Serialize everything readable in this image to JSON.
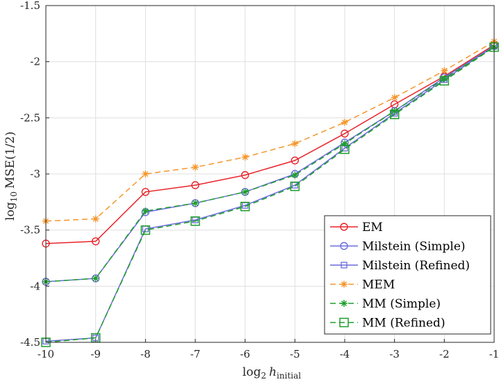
{
  "chart_data": {
    "type": "line",
    "title": "",
    "xlabel": "log2 h_initial",
    "xlabel_main": "log",
    "xlabel_sub": "2",
    "xlabel_var": "h",
    "xlabel_var_sub": "initial",
    "ylabel": "log10 MSE(1/2)",
    "ylabel_main": "log",
    "ylabel_sub": "10",
    "ylabel_rest": "MSE(1/2)",
    "xlim": [
      -10,
      -1
    ],
    "ylim": [
      -4.5,
      -1.5
    ],
    "grid": true,
    "legend_position": "bottom-right",
    "x_ticks": [
      "-10",
      "-9",
      "-8",
      "-7",
      "-6",
      "-5",
      "-4",
      "-3",
      "-2",
      "-1"
    ],
    "y_ticks": [
      "-1.5",
      "-2",
      "-2.5",
      "-3",
      "-3.5",
      "-4",
      "-4.5"
    ],
    "x": [
      -10,
      -9,
      -8,
      -7,
      -6,
      -5,
      -4,
      -3,
      -2,
      -1
    ],
    "series": [
      {
        "name": "EM",
        "color": "#e8232a",
        "dash": "solid",
        "marker": "circle",
        "values": [
          -3.62,
          -3.6,
          -3.16,
          -3.1,
          -3.01,
          -2.88,
          -2.64,
          -2.38,
          -2.13,
          -1.85
        ]
      },
      {
        "name": "Milstein (Simple)",
        "color": "#6b6bdc",
        "dash": "solid",
        "marker": "circle",
        "values": [
          -3.96,
          -3.93,
          -3.34,
          -3.26,
          -3.16,
          -3.0,
          -2.72,
          -2.44,
          -2.14,
          -1.86
        ]
      },
      {
        "name": "Milstein (Refined)",
        "color": "#6b6bdc",
        "dash": "solid",
        "marker": "square-small",
        "values": [
          -4.49,
          -4.46,
          -3.49,
          -3.41,
          -3.28,
          -3.1,
          -2.77,
          -2.46,
          -2.16,
          -1.86
        ]
      },
      {
        "name": "MEM",
        "color": "#f5952a",
        "dash": "dashed",
        "marker": "asterisk",
        "values": [
          -3.42,
          -3.4,
          -3.0,
          -2.94,
          -2.85,
          -2.73,
          -2.54,
          -2.32,
          -2.08,
          -1.82
        ]
      },
      {
        "name": "MM (Simple)",
        "color": "#1e9e2c",
        "dash": "dashed",
        "marker": "asterisk",
        "values": [
          -3.96,
          -3.93,
          -3.33,
          -3.26,
          -3.16,
          -3.01,
          -2.73,
          -2.44,
          -2.15,
          -1.87
        ]
      },
      {
        "name": "MM (Refined)",
        "color": "#1e9e2c",
        "dash": "dashed",
        "marker": "square",
        "values": [
          -4.5,
          -4.46,
          -3.5,
          -3.42,
          -3.29,
          -3.11,
          -2.78,
          -2.47,
          -2.17,
          -1.87
        ]
      }
    ]
  }
}
